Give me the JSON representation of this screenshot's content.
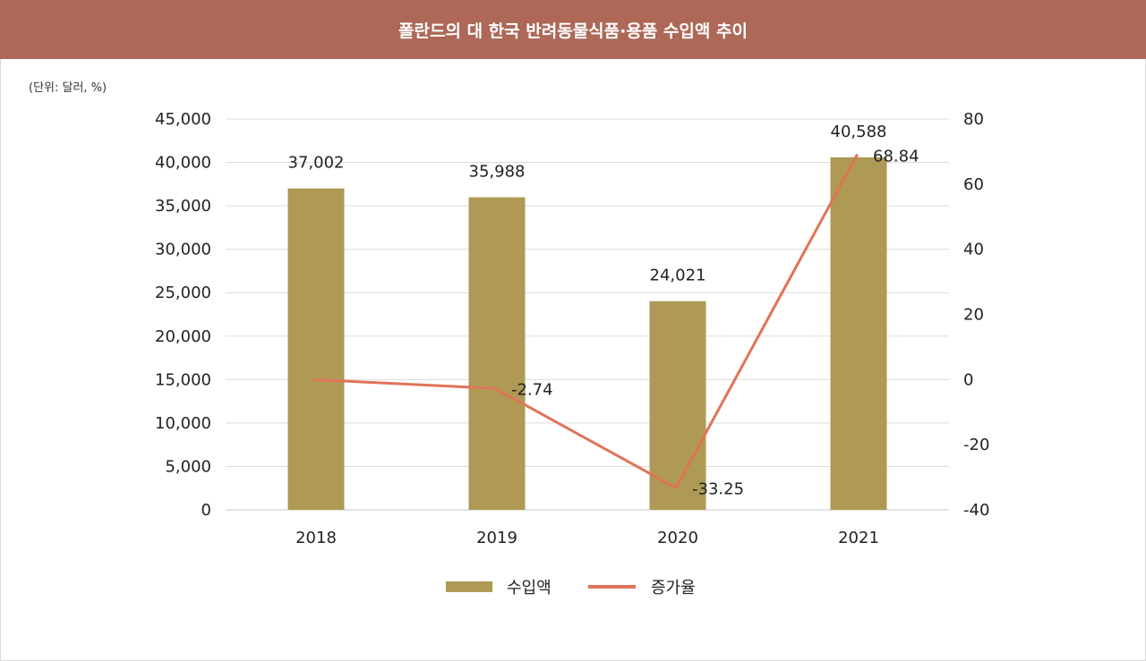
{
  "header": {
    "title": "폴란드의 대 한국 반려동물식품·용품 수입액 추이"
  },
  "unit_note": "(단위: 달러, %)",
  "chart_data": {
    "type": "bar",
    "title": "폴란드의 대 한국 반려동물식품·용품 수입액 추이",
    "categories": [
      "2018",
      "2019",
      "2020",
      "2021"
    ],
    "series": [
      {
        "name": "수입액",
        "type": "bar",
        "axis": "left",
        "values": [
          37002,
          35988,
          24021,
          40588
        ],
        "labels": [
          "37,002",
          "35,988",
          "24,021",
          "40,588"
        ],
        "color": "#ae9a55"
      },
      {
        "name": "증가율",
        "type": "line",
        "axis": "right",
        "values": [
          0,
          -2.74,
          -33.25,
          68.84
        ],
        "labels": [
          "",
          "-2.74",
          "-33.25",
          "68.84"
        ],
        "color": "#e07358"
      }
    ],
    "y_left": {
      "min": 0,
      "max": 45000,
      "step": 5000,
      "ticks": [
        "0",
        "5,000",
        "10,000",
        "15,000",
        "20,000",
        "25,000",
        "30,000",
        "35,000",
        "40,000",
        "45,000"
      ]
    },
    "y_right": {
      "min": -40,
      "max": 80,
      "step": 20,
      "ticks": [
        "-40",
        "-20",
        "0",
        "20",
        "40",
        "60",
        "80"
      ]
    },
    "grid": true,
    "legend": "bottom"
  }
}
